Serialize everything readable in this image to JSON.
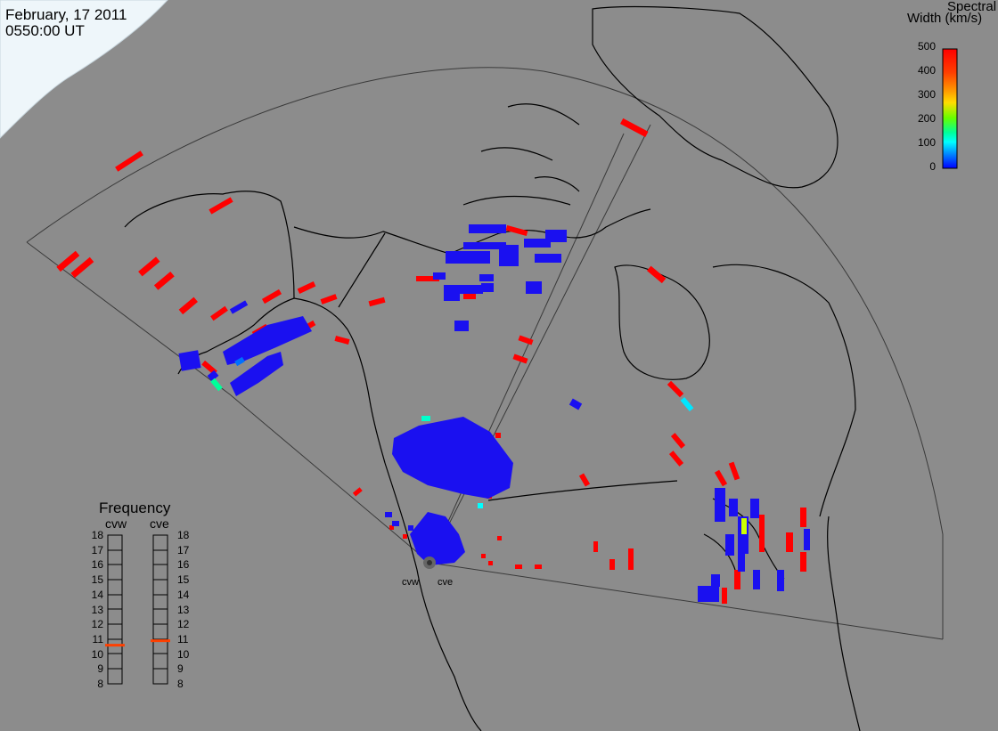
{
  "header": {
    "date": "February, 17 2011",
    "time": "0550:00 UT"
  },
  "colorbar": {
    "title_line1": "Spectral",
    "title_line2": "Width (km/s)",
    "ticks": [
      "500",
      "400",
      "300",
      "200",
      "100",
      "0"
    ],
    "colors": [
      "#ff0000",
      "#ff8000",
      "#ffcc00",
      "#80ff00",
      "#00ff80",
      "#00ffff",
      "#0060ff",
      "#0000ff"
    ]
  },
  "frequency": {
    "title": "Frequency",
    "left_label": "cvw",
    "right_label": "cve",
    "scale": [
      "18",
      "17",
      "16",
      "15",
      "14",
      "13",
      "12",
      "11",
      "10",
      "9",
      "8"
    ],
    "left_value_mhz": 10.6,
    "right_value_mhz": 10.9,
    "marker_color": "#ff4000"
  },
  "sites": {
    "west": "cvw",
    "east": "cve"
  },
  "colors": {
    "background": "#8c8c8c",
    "ice": "#eef6fa",
    "blue_echo": "#1a10f0",
    "red_echo": "#ff0000",
    "outline": "#000000"
  }
}
